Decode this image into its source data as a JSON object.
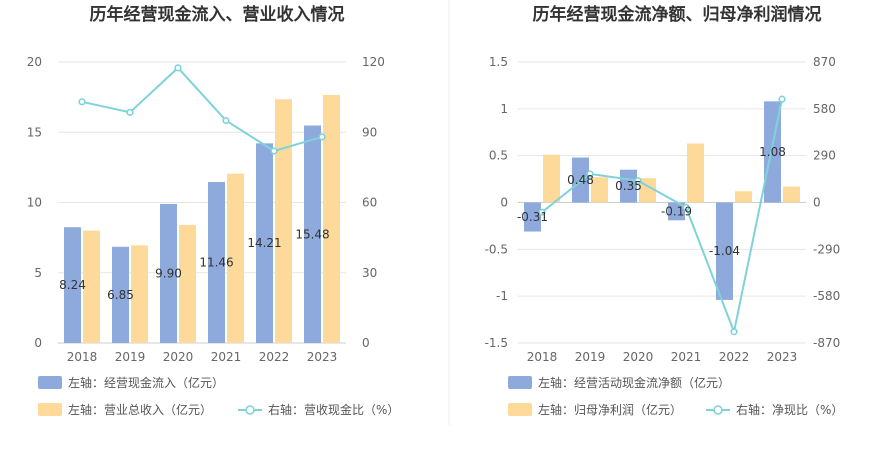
{
  "chart_data": [
    {
      "type": "bar",
      "title": "历年经营现金流入、营业收入情况",
      "categories": [
        "2018",
        "2019",
        "2020",
        "2021",
        "2022",
        "2023"
      ],
      "left_axis": {
        "ylim": [
          0,
          20
        ],
        "ticks": [
          "0",
          "5",
          "10",
          "15",
          "20"
        ]
      },
      "right_axis": {
        "ylim": [
          0,
          120
        ],
        "ticks": [
          "0",
          "30",
          "60",
          "90",
          "120"
        ]
      },
      "series": [
        {
          "name": "左轴：经营现金流入（亿元）",
          "type": "bar",
          "axis": "left",
          "color": "#8eaadc",
          "values": [
            8.24,
            6.85,
            9.9,
            11.46,
            14.21,
            15.48
          ],
          "labels": [
            "8.24",
            "6.85",
            "9.90",
            "11.46",
            "14.21",
            "15.48"
          ]
        },
        {
          "name": "左轴：营业总收入（亿元）",
          "type": "bar",
          "axis": "left",
          "color": "#fdd99a",
          "values": [
            8.0,
            6.95,
            8.4,
            12.05,
            17.35,
            17.65
          ]
        },
        {
          "name": "右轴：营收现金比（%）",
          "type": "line",
          "axis": "right",
          "color": "#7fd3d8",
          "values": [
            103,
            98.5,
            117.5,
            95,
            82,
            88
          ]
        }
      ],
      "grid": true,
      "legend": "bottom"
    },
    {
      "type": "bar",
      "title": "历年经营现金流净额、归母净利润情况",
      "categories": [
        "2018",
        "2019",
        "2020",
        "2021",
        "2022",
        "2023"
      ],
      "left_axis": {
        "ylim": [
          -1.5,
          1.5
        ],
        "ticks": [
          "-1.5",
          "-1",
          "-0.5",
          "0",
          "0.5",
          "1",
          "1.5"
        ]
      },
      "right_axis": {
        "ylim": [
          -870,
          870
        ],
        "ticks": [
          "-870",
          "-580",
          "-290",
          "0",
          "290",
          "580",
          "870"
        ]
      },
      "series": [
        {
          "name": "左轴：经营活动现金流净额（亿元）",
          "type": "bar",
          "axis": "left",
          "color": "#8eaadc",
          "values": [
            -0.31,
            0.48,
            0.35,
            -0.19,
            -1.04,
            1.08
          ],
          "labels": [
            "-0.31",
            "0.48",
            "0.35",
            "-0.19",
            "-1.04",
            "1.08"
          ]
        },
        {
          "name": "左轴：归母净利润（亿元）",
          "type": "bar",
          "axis": "left",
          "color": "#fdd99a",
          "values": [
            0.51,
            0.27,
            0.26,
            0.63,
            0.12,
            0.17
          ]
        },
        {
          "name": "右轴：净现比（%）",
          "type": "line",
          "axis": "right",
          "color": "#7fd3d8",
          "values": [
            -60,
            177,
            135,
            -30,
            -800,
            640
          ]
        }
      ],
      "grid": true,
      "legend": "bottom"
    }
  ]
}
